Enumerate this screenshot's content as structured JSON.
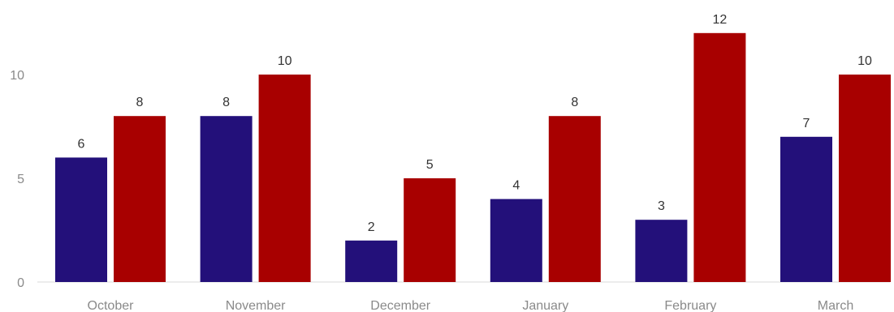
{
  "chart_data": {
    "type": "bar",
    "categories": [
      "October",
      "November",
      "December",
      "January",
      "February",
      "March"
    ],
    "series": [
      {
        "color": "#23107a",
        "values": [
          6,
          8,
          2,
          4,
          3,
          7
        ]
      },
      {
        "color": "#a80000",
        "values": [
          8,
          10,
          5,
          8,
          12,
          10
        ]
      }
    ],
    "yticks": [
      0,
      5,
      10
    ],
    "ylim": [
      0,
      12
    ],
    "grid": false,
    "legend": "none",
    "title": "",
    "xlabel": "",
    "ylabel": ""
  }
}
